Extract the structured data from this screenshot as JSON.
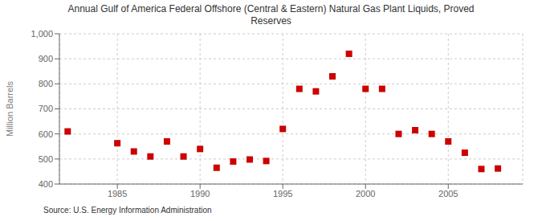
{
  "chart_data": {
    "type": "scatter",
    "title": "Annual Gulf of America Federal Offshore (Central & Eastern) Natural Gas Plant Liquids, Proved\nReserves",
    "ylabel": "Million Barrels",
    "annotations": [
      "Source: U.S. Energy Information Administration"
    ],
    "color": "#cc0000",
    "marker": "square",
    "x": [
      1982,
      1985,
      1986,
      1987,
      1988,
      1989,
      1990,
      1991,
      1992,
      1993,
      1994,
      1995,
      1996,
      1997,
      1998,
      1999,
      2000,
      2001,
      2002,
      2003,
      2004,
      2005,
      2006,
      2007,
      2008
    ],
    "values": [
      610,
      563,
      530,
      510,
      570,
      510,
      540,
      465,
      490,
      498,
      492,
      620,
      780,
      770,
      830,
      920,
      780,
      780,
      600,
      615,
      600,
      570,
      525,
      460,
      462
    ],
    "xlim": [
      1981.5,
      2009.5
    ],
    "xticks": [
      1985,
      1990,
      1995,
      2000,
      2005
    ],
    "ylim": [
      400,
      1000
    ],
    "yticks": [
      400,
      500,
      600,
      700,
      800,
      900,
      {
        "value": 1000,
        "label": "1,000"
      }
    ],
    "grid": true
  }
}
